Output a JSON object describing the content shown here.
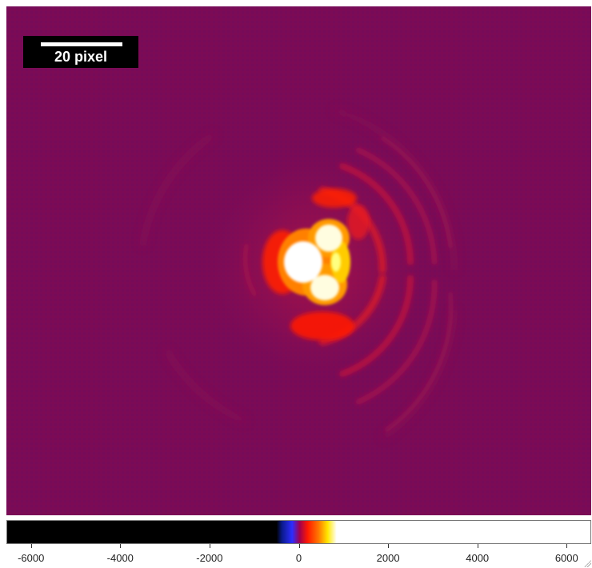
{
  "image": {
    "subject": "speckle-image",
    "background_color": "#7a0b57"
  },
  "scale_bar": {
    "label": "20 pixel",
    "box_color": "#000000",
    "line_color": "#ffffff"
  },
  "colorbar": {
    "ticks": [
      {
        "value": -6000,
        "label": "-6000"
      },
      {
        "value": -4000,
        "label": "-4000"
      },
      {
        "value": -2000,
        "label": "-2000"
      },
      {
        "value": 0,
        "label": "0"
      },
      {
        "value": 2000,
        "label": "2000"
      },
      {
        "value": 4000,
        "label": "4000"
      },
      {
        "value": 6000,
        "label": "6000"
      }
    ],
    "range": [
      -6550,
      6550
    ],
    "stops": [
      {
        "value": -6550,
        "color": "#000000"
      },
      {
        "value": -500,
        "color": "#000000"
      },
      {
        "value": -380,
        "color": "#0a1a8a"
      },
      {
        "value": -150,
        "color": "#2d2dff"
      },
      {
        "value": 20,
        "color": "#a00050"
      },
      {
        "value": 200,
        "color": "#ff1a00"
      },
      {
        "value": 450,
        "color": "#ff7a00"
      },
      {
        "value": 650,
        "color": "#ffe800"
      },
      {
        "value": 850,
        "color": "#ffffff"
      },
      {
        "value": 6550,
        "color": "#ffffff"
      }
    ]
  }
}
